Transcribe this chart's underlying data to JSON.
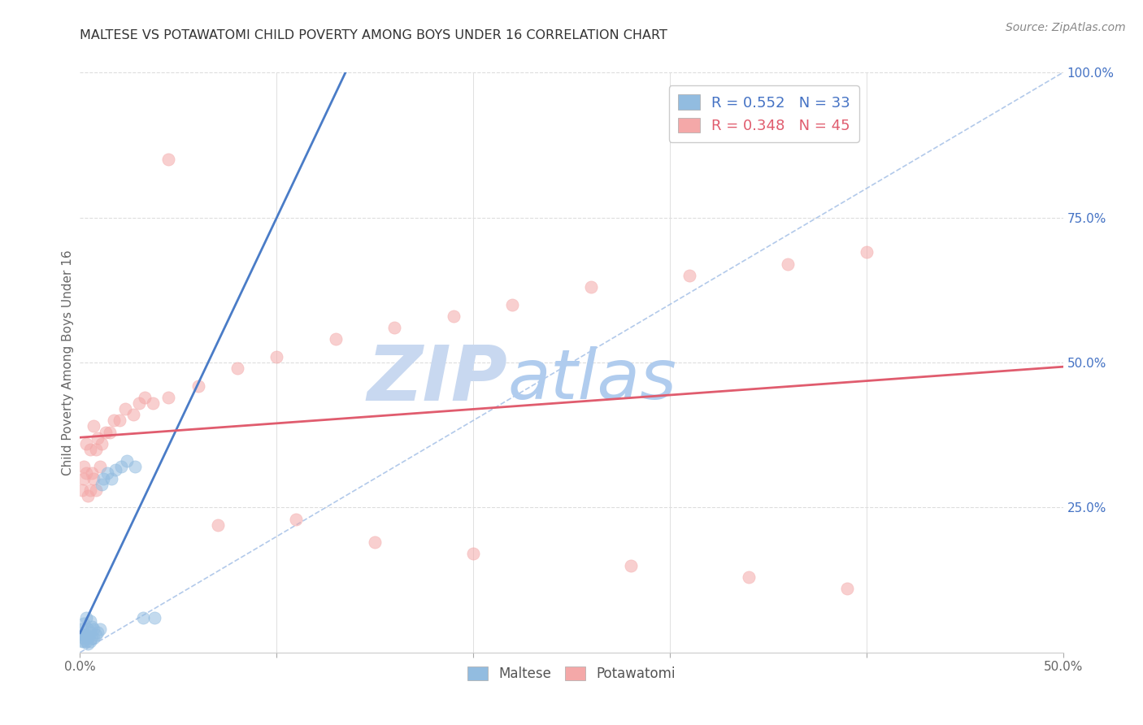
{
  "title": "MALTESE VS POTAWATOMI CHILD POVERTY AMONG BOYS UNDER 16 CORRELATION CHART",
  "source": "Source: ZipAtlas.com",
  "ylabel": "Child Poverty Among Boys Under 16",
  "xlim": [
    0.0,
    0.5
  ],
  "ylim": [
    0.0,
    1.0
  ],
  "ytick_labels_right": [
    "100.0%",
    "75.0%",
    "50.0%",
    "25.0%"
  ],
  "ytick_vals_right": [
    1.0,
    0.75,
    0.5,
    0.25
  ],
  "legend_maltese_R": "R = 0.552",
  "legend_maltese_N": "N = 33",
  "legend_potawatomi_R": "R = 0.348",
  "legend_potawatomi_N": "N = 45",
  "maltese_color": "#92bce0",
  "potawatomi_color": "#f4a8a8",
  "maltese_line_color": "#4a7cc7",
  "potawatomi_line_color": "#e05c6e",
  "diagonal_color": "#aac4e8",
  "watermark_zip": "ZIP",
  "watermark_atlas": "atlas",
  "watermark_color_zip": "#c8d8f0",
  "watermark_color_atlas": "#b0ccee",
  "maltese_x": [
    0.001,
    0.001,
    0.001,
    0.002,
    0.002,
    0.002,
    0.002,
    0.003,
    0.003,
    0.003,
    0.004,
    0.004,
    0.004,
    0.005,
    0.005,
    0.005,
    0.006,
    0.006,
    0.007,
    0.007,
    0.008,
    0.009,
    0.01,
    0.011,
    0.012,
    0.014,
    0.016,
    0.018,
    0.021,
    0.024,
    0.028,
    0.032,
    0.038
  ],
  "maltese_y": [
    0.02,
    0.03,
    0.04,
    0.02,
    0.025,
    0.03,
    0.05,
    0.02,
    0.03,
    0.06,
    0.015,
    0.025,
    0.04,
    0.02,
    0.035,
    0.055,
    0.025,
    0.045,
    0.025,
    0.04,
    0.03,
    0.035,
    0.04,
    0.29,
    0.3,
    0.31,
    0.3,
    0.315,
    0.32,
    0.33,
    0.32,
    0.06,
    0.06
  ],
  "potawatomi_x": [
    0.001,
    0.002,
    0.002,
    0.003,
    0.003,
    0.004,
    0.005,
    0.005,
    0.006,
    0.007,
    0.007,
    0.008,
    0.008,
    0.009,
    0.01,
    0.011,
    0.013,
    0.015,
    0.017,
    0.02,
    0.023,
    0.027,
    0.03,
    0.033,
    0.037,
    0.045,
    0.06,
    0.08,
    0.1,
    0.13,
    0.16,
    0.19,
    0.22,
    0.26,
    0.31,
    0.36,
    0.4,
    0.045,
    0.07,
    0.11,
    0.15,
    0.2,
    0.28,
    0.34,
    0.39
  ],
  "potawatomi_y": [
    0.28,
    0.3,
    0.32,
    0.31,
    0.36,
    0.27,
    0.28,
    0.35,
    0.31,
    0.3,
    0.39,
    0.28,
    0.35,
    0.37,
    0.32,
    0.36,
    0.38,
    0.38,
    0.4,
    0.4,
    0.42,
    0.41,
    0.43,
    0.44,
    0.43,
    0.44,
    0.46,
    0.49,
    0.51,
    0.54,
    0.56,
    0.58,
    0.6,
    0.63,
    0.65,
    0.67,
    0.69,
    0.85,
    0.22,
    0.23,
    0.19,
    0.17,
    0.15,
    0.13,
    0.11
  ]
}
